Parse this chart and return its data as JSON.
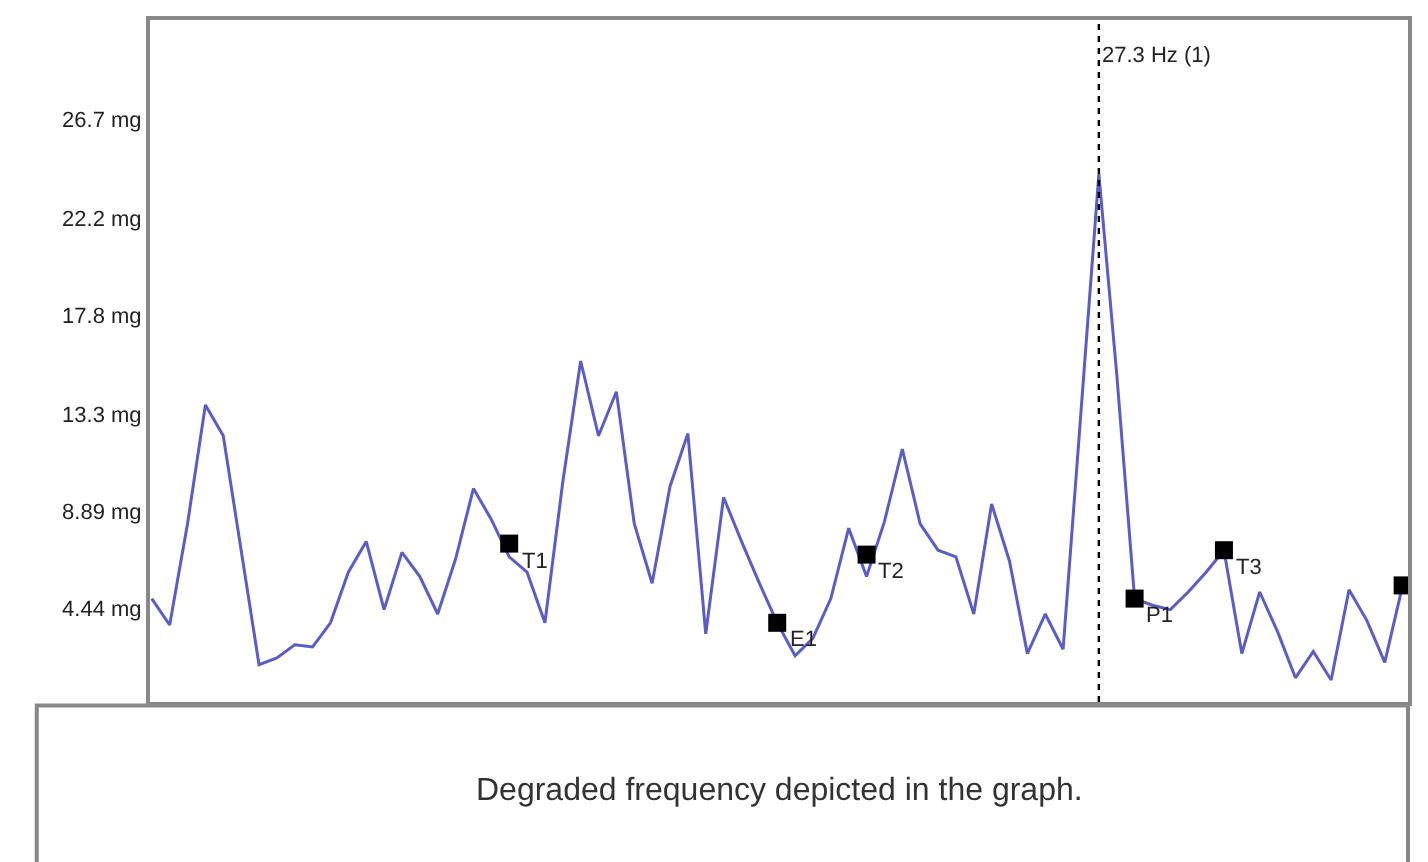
{
  "chart_data": {
    "type": "line",
    "categories": [
      null,
      null,
      null,
      null,
      null,
      null,
      null,
      null,
      null,
      null,
      null,
      null,
      null,
      null,
      null,
      null,
      null,
      null,
      null,
      null,
      null,
      null,
      null,
      null,
      null,
      null,
      null,
      null,
      null,
      null,
      null,
      null,
      null,
      null,
      null,
      null,
      null,
      null,
      null,
      null,
      null,
      null,
      null,
      null,
      null,
      null,
      null,
      null,
      null,
      null,
      null,
      null,
      null,
      null,
      null,
      null,
      null,
      null,
      null,
      null,
      null,
      null,
      null,
      null,
      null,
      null,
      null,
      null,
      null,
      null,
      null
    ],
    "ylim": [
      0.2,
      31.2
    ],
    "yticks": [
      {
        "value": 4.44,
        "label": "4.44 mg"
      },
      {
        "value": 8.89,
        "label": "8.89 mg"
      },
      {
        "value": 13.3,
        "label": "13.3 mg"
      },
      {
        "value": 17.8,
        "label": "17.8 mg"
      },
      {
        "value": 22.2,
        "label": "22.2 mg"
      },
      {
        "value": 26.7,
        "label": "26.7 mg"
      }
    ],
    "tick_labels": "y",
    "marker": "none",
    "line_style": "solid",
    "series": [
      {
        "color": "#5a5ec4",
        "values": [
          4.9,
          3.7,
          8.3,
          13.7,
          12.3,
          7.1,
          1.9,
          2.2,
          2.8,
          2.7,
          3.8,
          6.1,
          7.5,
          4.4,
          7.0,
          5.9,
          4.2,
          6.7,
          9.9,
          8.5,
          6.8,
          6.1,
          3.8,
          10.2,
          15.7,
          12.3,
          14.3,
          8.3,
          5.6,
          10.0,
          12.4,
          3.3,
          9.5,
          7.5,
          5.6,
          3.8,
          2.3,
          3.1,
          4.9,
          8.1,
          5.9,
          8.4,
          11.7,
          8.3,
          7.1,
          6.8,
          4.2,
          9.2,
          6.6,
          2.4,
          4.2,
          2.6,
          13.4,
          24.2,
          15.1,
          4.9,
          4.6,
          4.4,
          5.2,
          6.1,
          7.1,
          2.4,
          5.2,
          3.4,
          1.3,
          2.5,
          1.2,
          5.3,
          3.9,
          2.0,
          5.5
        ]
      },
      {
        "type": "scatter",
        "marker": "square",
        "color": "#000000",
        "values": [
          null,
          null,
          null,
          null,
          null,
          null,
          null,
          null,
          null,
          null,
          null,
          null,
          null,
          null,
          null,
          null,
          null,
          null,
          null,
          null,
          7.4,
          null,
          null,
          null,
          null,
          null,
          null,
          null,
          null,
          null,
          null,
          null,
          null,
          null,
          null,
          3.8,
          null,
          null,
          null,
          null,
          6.9,
          null,
          null,
          null,
          null,
          null,
          null,
          null,
          null,
          null,
          null,
          null,
          null,
          null,
          null,
          4.9,
          null,
          null,
          null,
          null,
          7.1,
          null,
          null,
          null,
          null,
          null,
          null,
          null,
          null,
          null,
          5.5
        ],
        "value_labels": [
          null,
          null,
          null,
          null,
          null,
          null,
          null,
          null,
          null,
          null,
          null,
          null,
          null,
          null,
          null,
          null,
          null,
          null,
          null,
          null,
          "T1",
          null,
          null,
          null,
          null,
          null,
          null,
          null,
          null,
          null,
          null,
          null,
          null,
          null,
          null,
          "E1",
          null,
          null,
          null,
          null,
          "T2",
          null,
          null,
          null,
          null,
          null,
          null,
          null,
          null,
          null,
          null,
          null,
          null,
          null,
          null,
          "P1",
          null,
          null,
          null,
          null,
          "T3",
          null,
          null,
          null,
          null,
          null,
          null,
          null,
          null,
          null,
          null
        ]
      }
    ],
    "annotations": [
      "27.3 Hz (1)",
      "Degraded frequency depicted in the graph."
    ]
  }
}
